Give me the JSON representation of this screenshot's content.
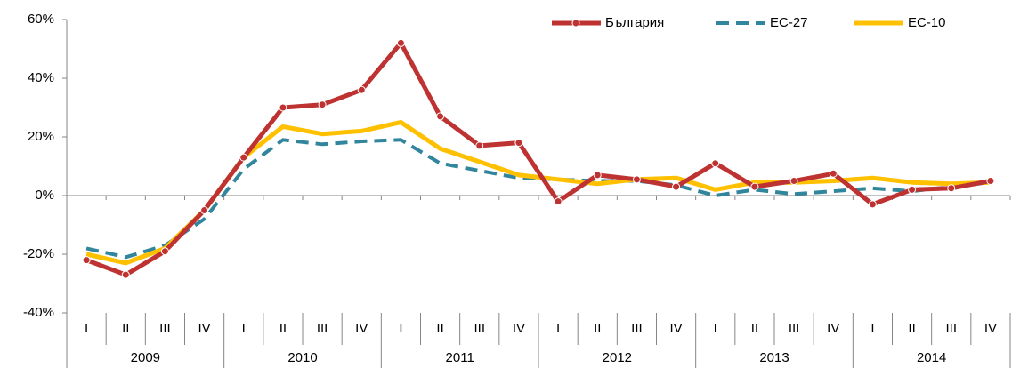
{
  "chart_data": {
    "type": "line",
    "categories": [
      "I",
      "II",
      "III",
      "IV",
      "I",
      "II",
      "III",
      "IV",
      "I",
      "II",
      "III",
      "IV",
      "I",
      "II",
      "III",
      "IV",
      "I",
      "II",
      "III",
      "IV",
      "I",
      "II",
      "III",
      "IV"
    ],
    "years": [
      "2009",
      "2010",
      "2011",
      "2012",
      "2013",
      "2014"
    ],
    "series": [
      {
        "name": "България",
        "color": "#be3232",
        "dash": false,
        "marker": true,
        "values": [
          -22,
          -27,
          -19,
          -5,
          13,
          30,
          31,
          36,
          52,
          27,
          17,
          18,
          -2,
          7,
          5.5,
          3,
          11,
          3,
          5,
          7.5,
          -3,
          2,
          2.5,
          5
        ]
      },
      {
        "name": "ЕС-27",
        "color": "#31859c",
        "dash": true,
        "marker": false,
        "values": [
          -18,
          -21,
          -17,
          -8,
          9,
          19,
          17.5,
          18.5,
          19,
          11,
          8.5,
          6,
          5.5,
          5,
          5,
          3.5,
          0,
          2,
          0.5,
          1.5,
          2.5,
          1.5,
          3,
          4.5
        ]
      },
      {
        "name": "ЕС-10",
        "color": "#ffc000",
        "dash": false,
        "marker": false,
        "values": [
          -20,
          -23,
          -18,
          -5,
          13,
          23.5,
          21,
          22,
          25,
          16,
          11.5,
          7,
          5.5,
          4,
          5.5,
          6,
          2,
          4.5,
          4.5,
          5,
          6,
          4.5,
          4,
          4.5
        ]
      }
    ],
    "ylim": [
      -40,
      60
    ],
    "yticks": [
      {
        "value": -40,
        "label": "-40%"
      },
      {
        "value": -20,
        "label": "-20%"
      },
      {
        "value": 0,
        "label": "0%"
      },
      {
        "value": 20,
        "label": "20%"
      },
      {
        "value": 40,
        "label": "40%"
      },
      {
        "value": 60,
        "label": "60%"
      }
    ],
    "legend": "top-right",
    "grid": false
  }
}
